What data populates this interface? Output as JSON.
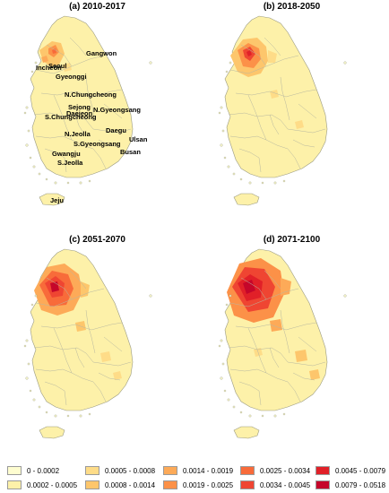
{
  "panels": [
    {
      "title": "(a) 2010-2017"
    },
    {
      "title": "(b) 2018-2050"
    },
    {
      "title": "(c) 2051-2070"
    },
    {
      "title": "(d) 2071-2100"
    }
  ],
  "region_labels": [
    "Gangwon",
    "Incheon",
    "Seoul",
    "Gyeonggi",
    "N.Chungcheong",
    "Sejong",
    "Daejeon",
    "S.Chungcheong",
    "N.Gyeongsang",
    "N.Jeolla",
    "Daegu",
    "S.Gyeongsang",
    "Ulsan",
    "Gwangju",
    "Busan",
    "S.Jeolla",
    "Jeju"
  ],
  "legend": {
    "items": [
      {
        "label": "0 - 0.0002",
        "color": "#fefdd0"
      },
      {
        "label": "0.0002 - 0.0005",
        "color": "#fdf1a9"
      },
      {
        "label": "0.0005 - 0.0008",
        "color": "#fedc88"
      },
      {
        "label": "0.0008 - 0.0014",
        "color": "#fdc66c"
      },
      {
        "label": "0.0014 - 0.0019",
        "color": "#fdaa58"
      },
      {
        "label": "0.0019 - 0.0025",
        "color": "#fc9148"
      },
      {
        "label": "0.0025 - 0.0034",
        "color": "#f86b3a"
      },
      {
        "label": "0.0034 - 0.0045",
        "color": "#ef4532"
      },
      {
        "label": "0.0045 - 0.0079",
        "color": "#e12028"
      },
      {
        "label": "0.0079 - 0.0518",
        "color": "#c5062a"
      }
    ]
  }
}
